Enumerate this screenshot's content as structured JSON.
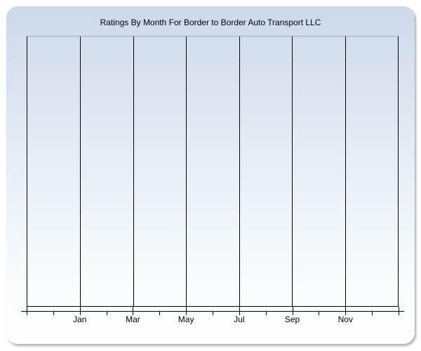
{
  "chart_data": {
    "type": "line",
    "title": "Ratings By Month For Border to Border Auto Transport LLC",
    "x_tick_labels": [
      "Jan",
      "Mar",
      "May",
      "Jul",
      "Sep",
      "Nov"
    ],
    "series": [],
    "plot_empty": true,
    "x_minor_tick_count": 15,
    "xlabel": "",
    "ylabel": "",
    "grid": "vertical gridlines every 2 months, no horizontal gridlines",
    "legend": "none",
    "y_axis_labels": "none visible"
  },
  "colors": {
    "title_text": "#000000",
    "axis_and_grid": "#000000",
    "plot_top_border": "#a5aebc",
    "panel_gradient_top": "#cbd9ea",
    "panel_gradient_bottom": "#ffffff",
    "page_background": "#ffffff"
  }
}
